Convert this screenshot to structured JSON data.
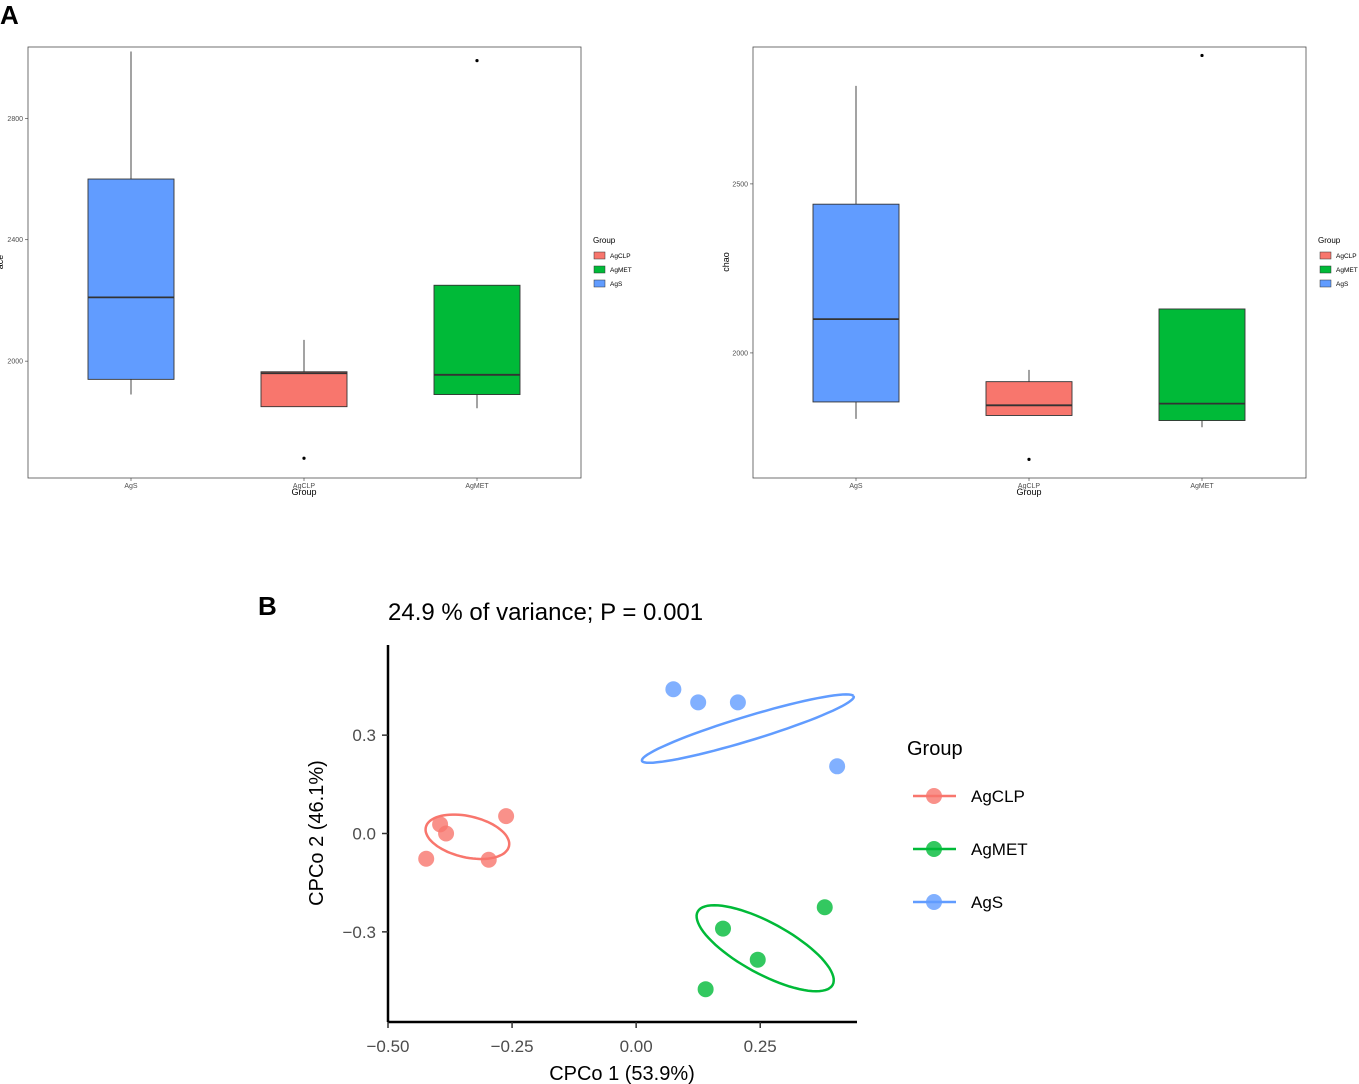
{
  "panel_a_label": "A",
  "panel_b_label": "B",
  "colors": {
    "AgCLP": "#F8766D",
    "AgMET": "#00BA38",
    "AgS": "#619CFF"
  },
  "chart_data": [
    {
      "type": "box",
      "id": "ace",
      "ylabel": "ace",
      "xlabel": "Group",
      "categories": [
        "AgS",
        "AgCLP",
        "AgMET"
      ],
      "yticks": [
        2000,
        2400,
        2800
      ],
      "ylim": [
        1615,
        3035
      ],
      "boxes": [
        {
          "group": "AgS",
          "lower_whisker": 1890,
          "q1": 1940,
          "median": 2210,
          "q3": 2600,
          "upper_whisker": 3020,
          "outliers": []
        },
        {
          "group": "AgCLP",
          "lower_whisker": 1850,
          "q1": 1850,
          "median": 1960,
          "q3": 1965,
          "upper_whisker": 2070,
          "outliers": [
            1680
          ]
        },
        {
          "group": "AgMET",
          "lower_whisker": 1845,
          "q1": 1890,
          "median": 1955,
          "q3": 2250,
          "upper_whisker": 2250,
          "outliers": [
            2990
          ]
        }
      ],
      "legend": {
        "title": "Group",
        "entries": [
          "AgCLP",
          "AgMET",
          "AgS"
        ]
      }
    },
    {
      "type": "box",
      "id": "chao",
      "ylabel": "chao",
      "xlabel": "Group",
      "categories": [
        "AgS",
        "AgCLP",
        "AgMET"
      ],
      "yticks": [
        2000,
        2500
      ],
      "ylim": [
        1630,
        2905
      ],
      "boxes": [
        {
          "group": "AgS",
          "lower_whisker": 1805,
          "q1": 1855,
          "median": 2100,
          "q3": 2440,
          "upper_whisker": 2790,
          "outliers": []
        },
        {
          "group": "AgCLP",
          "lower_whisker": 1815,
          "q1": 1815,
          "median": 1845,
          "q3": 1915,
          "upper_whisker": 1950,
          "outliers": [
            1685
          ]
        },
        {
          "group": "AgMET",
          "lower_whisker": 1780,
          "q1": 1800,
          "median": 1850,
          "q3": 2130,
          "upper_whisker": 2130,
          "outliers": [
            2880
          ]
        }
      ],
      "legend": {
        "title": "Group",
        "entries": [
          "AgCLP",
          "AgMET",
          "AgS"
        ]
      }
    },
    {
      "type": "scatter",
      "id": "pcoa",
      "title": "24.9 % of variance; P = 0.001",
      "xlabel": "CPCo 1 (53.9%)",
      "ylabel": "CPCo 2 (46.1%)",
      "xticks": [
        -0.5,
        -0.25,
        0.0,
        0.25
      ],
      "xtick_labels": [
        "−0.50",
        "−0.25",
        "0.00",
        "0.25"
      ],
      "yticks": [
        0.3,
        0.0,
        -0.3
      ],
      "ytick_labels": [
        "0.3",
        "0.0",
        "−0.3"
      ],
      "xlim": [
        -0.5,
        0.445
      ],
      "ylim": [
        -0.575,
        0.575
      ],
      "legend": {
        "title": "Group",
        "entries": [
          "AgCLP",
          "AgMET",
          "AgS"
        ]
      },
      "series": [
        {
          "name": "AgCLP",
          "points": [
            [
              -0.395,
              0.028
            ],
            [
              -0.383,
              0.0
            ],
            [
              -0.262,
              0.053
            ],
            [
              -0.423,
              -0.077
            ],
            [
              -0.297,
              -0.08
            ]
          ],
          "ellipse": {
            "cx": -0.34,
            "cy": -0.01,
            "a": 0.09,
            "b": 0.06,
            "angle_deg": -28
          }
        },
        {
          "name": "AgMET",
          "points": [
            [
              0.175,
              -0.29
            ],
            [
              0.245,
              -0.385
            ],
            [
              0.38,
              -0.225
            ],
            [
              0.14,
              -0.475
            ]
          ],
          "ellipse": {
            "cx": 0.26,
            "cy": -0.35,
            "a": 0.178,
            "b": 0.068,
            "angle_deg": -43
          }
        },
        {
          "name": "AgS",
          "points": [
            [
              0.075,
              0.44
            ],
            [
              0.125,
              0.4
            ],
            [
              0.205,
              0.4
            ],
            [
              0.405,
              0.205
            ]
          ],
          "ellipse": {
            "cx": 0.225,
            "cy": 0.32,
            "a": 0.235,
            "b": 0.035,
            "angle_deg": 25
          }
        }
      ]
    }
  ]
}
